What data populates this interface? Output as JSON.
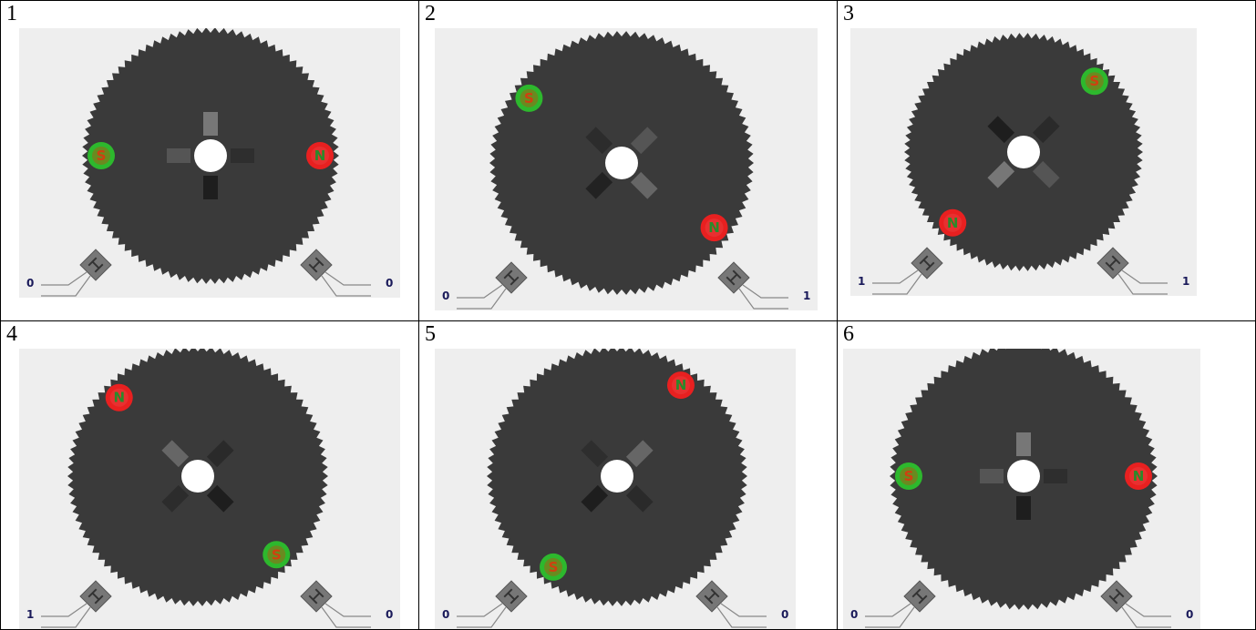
{
  "panels": [
    {
      "number": "1",
      "left_sensor": "0",
      "right_sensor": "0",
      "magnet_angle": 0
    },
    {
      "number": "2",
      "left_sensor": "0",
      "right_sensor": "1",
      "magnet_angle": 35
    },
    {
      "number": "3",
      "left_sensor": "1",
      "right_sensor": "1",
      "magnet_angle": 135
    },
    {
      "number": "4",
      "left_sensor": "1",
      "right_sensor": "0",
      "magnet_angle": 225
    },
    {
      "number": "5",
      "left_sensor": "0",
      "right_sensor": "0",
      "magnet_angle": 305
    },
    {
      "number": "6",
      "left_sensor": "0",
      "right_sensor": "0",
      "magnet_angle": 0
    }
  ],
  "magnets": {
    "south_letter": "S",
    "north_letter": "N"
  },
  "colors": {
    "rotor": "#3a3a3a",
    "panel_bg": "#eeeeee",
    "south_ring": "#2db82d",
    "north_fill": "#e82020",
    "letter": "#d04010"
  }
}
